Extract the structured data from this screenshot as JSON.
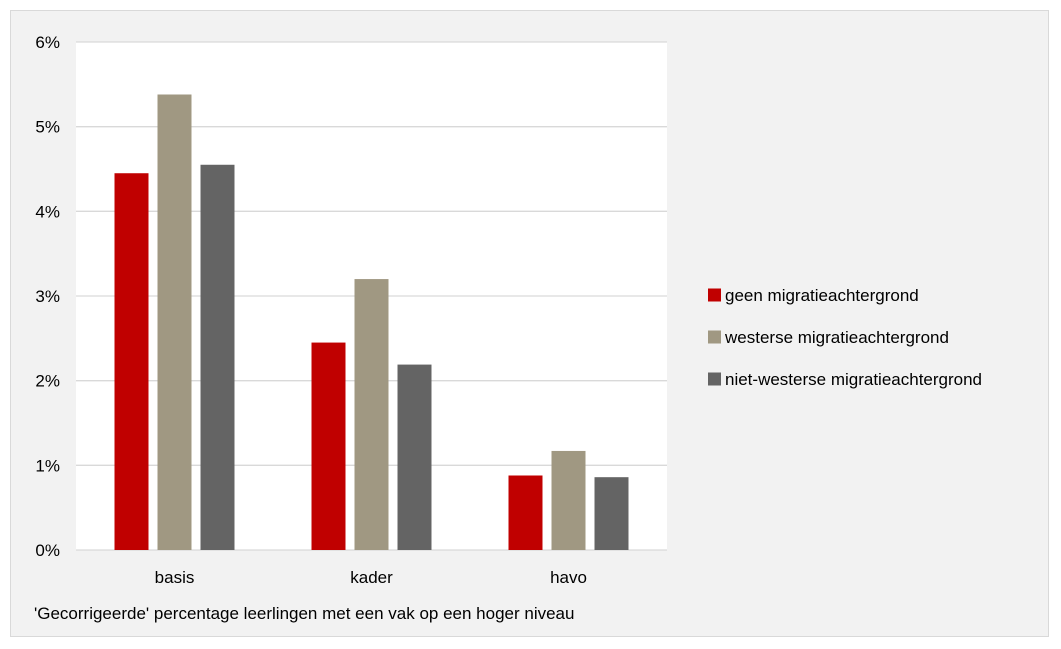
{
  "chart_data": {
    "type": "bar",
    "categories": [
      "basis",
      "kader",
      "havo"
    ],
    "series": [
      {
        "name": "geen migratieachtergrond",
        "values": [
          4.45,
          2.45,
          0.88
        ],
        "color": "#c00000"
      },
      {
        "name": "westerse migratieachtergrond",
        "values": [
          5.38,
          3.2,
          1.17
        ],
        "color": "#a09882"
      },
      {
        "name": "niet-westerse migratieachtergrond",
        "values": [
          4.55,
          2.19,
          0.86
        ],
        "color": "#646464"
      }
    ],
    "title": "",
    "xlabel": "'Gecorrigeerde' percentage leerlingen met een vak op een hoger niveau",
    "ylabel": "",
    "ylim": [
      0,
      6
    ],
    "yticks": [
      "0%",
      "1%",
      "2%",
      "3%",
      "4%",
      "5%",
      "6%"
    ],
    "grid": true,
    "legend_position": "right",
    "background_color": "#f2f2f2",
    "plot_background_color": "#ffffff",
    "gridline_color": "#d9d9d9"
  }
}
